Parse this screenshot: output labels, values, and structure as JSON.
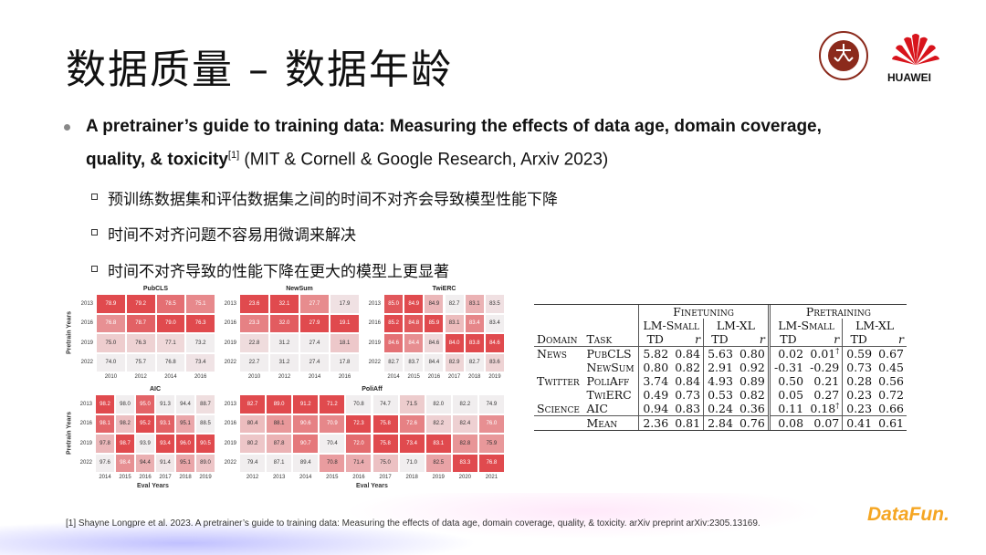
{
  "slide": {
    "title": "数据质量 – 数据年龄",
    "bullet": {
      "bold": "A pretrainer’s guide to training data: Measuring the effects of data age, domain coverage,",
      "bold2": "quality, & toxicity",
      "sup": "[1]",
      "rest": " (MIT & Cornell & Google Research, Arxiv 2023)"
    },
    "subbullets": [
      "预训练数据集和评估数据集之间的时间不对齐会导致模型性能下降",
      "时间不对齐问题不容易用微调来解决",
      "时间不对齐导致的性能下降在更大的模型上更显著"
    ],
    "footer": "[1] Shayne Longpre et al. 2023. A pretrainer’s guide to training data: Measuring the effects of data age, domain coverage, quality, & toxicity. arXiv preprint arXiv:2305.13169.",
    "logos": {
      "pku": "PEKING UNIVERSITY 1898",
      "huawei": "HUAWEI",
      "datafun": "DataFun."
    }
  },
  "heatmaps": {
    "ylabel": "Pretrain Years",
    "xlabel": "Eval Years",
    "color_high": "#e04a4e",
    "color_low": "#f1eeef",
    "rows": [
      "2013",
      "2016",
      "2019",
      "2022"
    ],
    "panels": [
      {
        "title": "PubCLS",
        "cols": [
          "2010",
          "2012",
          "2014",
          "2016"
        ],
        "values": [
          [
            78.9,
            79.2,
            78.5,
            75.1
          ],
          [
            76.8,
            78.7,
            79.0,
            76.3
          ],
          [
            75.0,
            76.3,
            77.1,
            73.2
          ],
          [
            74.0,
            75.7,
            76.8,
            73.4
          ]
        ]
      },
      {
        "title": "NewSum",
        "cols": [
          "2010",
          "2012",
          "2014",
          "2016"
        ],
        "values": [
          [
            23.6,
            32.1,
            27.7,
            17.9
          ],
          [
            23.3,
            32.0,
            27.9,
            19.1
          ],
          [
            22.8,
            31.2,
            27.4,
            18.1
          ],
          [
            22.7,
            31.2,
            27.4,
            17.8
          ]
        ]
      },
      {
        "title": "TwiERC",
        "cols": [
          "2014",
          "2015",
          "2016",
          "2017",
          "2018",
          "2019"
        ],
        "values": [
          [
            85.0,
            84.9,
            84.9,
            82.7,
            83.1,
            83.5
          ],
          [
            85.2,
            84.8,
            85.9,
            83.1,
            83.4,
            83.4
          ],
          [
            84.6,
            84.4,
            84.6,
            84.0,
            83.8,
            84.6
          ],
          [
            82.7,
            83.7,
            84.4,
            82.9,
            82.7,
            83.6
          ]
        ]
      },
      {
        "title": "AIC",
        "cols": [
          "2014",
          "2015",
          "2016",
          "2017",
          "2018",
          "2019"
        ],
        "values": [
          [
            98.2,
            98.0,
            95.0,
            91.3,
            94.4,
            88.7
          ],
          [
            98.1,
            98.2,
            95.2,
            93.1,
            95.1,
            88.5
          ],
          [
            97.8,
            98.7,
            93.9,
            93.4,
            96.0,
            90.5
          ],
          [
            97.6,
            98.4,
            94.4,
            91.4,
            95.1,
            89.0
          ]
        ]
      },
      {
        "title": "PoliAff",
        "cols": [
          "2012",
          "2013",
          "2014",
          "2015",
          "2016",
          "2017",
          "2018",
          "2019",
          "2020",
          "2021"
        ],
        "values": [
          [
            82.7,
            89.0,
            91.2,
            71.2,
            70.8,
            74.7,
            71.5,
            82.0,
            82.2,
            74.9
          ],
          [
            80.4,
            88.1,
            90.6,
            70.9,
            72.3,
            75.8,
            72.6,
            82.2,
            82.4,
            76.0
          ],
          [
            80.2,
            87.8,
            90.7,
            70.4,
            72.0,
            75.8,
            73.4,
            83.1,
            82.8,
            75.9
          ],
          [
            79.4,
            87.1,
            89.4,
            70.8,
            71.4,
            75.0,
            71.0,
            82.5,
            83.3,
            76.8
          ]
        ]
      }
    ]
  },
  "table": {
    "groups": [
      "Finetuning",
      "Pretraining"
    ],
    "models": [
      "LM-Small",
      "LM-XL",
      "LM-Small",
      "LM-XL"
    ],
    "col_domain": "Domain",
    "col_task": "Task",
    "td": "TD",
    "r": "r",
    "rows": [
      {
        "domain": "News",
        "task": "PubCLS",
        "v": [
          "5.82",
          "0.84",
          "5.63",
          "0.80",
          "0.02",
          "0.01",
          "0.59",
          "0.67"
        ],
        "dag": [
          5
        ]
      },
      {
        "domain": "",
        "task": "NewSum",
        "v": [
          "0.80",
          "0.82",
          "2.91",
          "0.92",
          "-0.31",
          "-0.29",
          "0.73",
          "0.45"
        ],
        "dag": []
      },
      {
        "domain": "Twitter",
        "task": "PoliAff",
        "v": [
          "3.74",
          "0.84",
          "4.93",
          "0.89",
          "0.50",
          "0.21",
          "0.28",
          "0.56"
        ],
        "dag": []
      },
      {
        "domain": "",
        "task": "TwiERC",
        "v": [
          "0.49",
          "0.73",
          "0.53",
          "0.82",
          "0.05",
          "0.27",
          "0.23",
          "0.72"
        ],
        "dag": []
      },
      {
        "domain": "Science",
        "task": "AIC",
        "v": [
          "0.94",
          "0.83",
          "0.24",
          "0.36",
          "0.11",
          "0.18",
          "0.23",
          "0.66"
        ],
        "dag": [
          5
        ]
      }
    ],
    "mean": {
      "task": "Mean",
      "v": [
        "2.36",
        "0.81",
        "2.84",
        "0.76",
        "0.08",
        "0.07",
        "0.41",
        "0.61"
      ]
    },
    "dagger": "†"
  }
}
